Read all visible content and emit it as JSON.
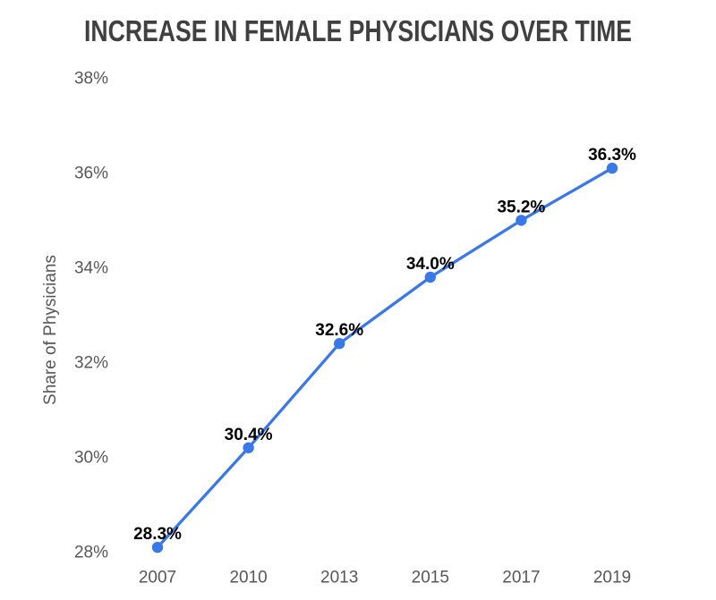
{
  "chart_data": {
    "type": "line",
    "title": "INCREASE IN FEMALE PHYSICIANS OVER TIME",
    "ylabel": "Share of Physicians",
    "categories": [
      "2007",
      "2010",
      "2013",
      "2015",
      "2017",
      "2019"
    ],
    "series": [
      {
        "name": "Share of Physicians",
        "values": [
          28.3,
          30.4,
          32.6,
          34.0,
          35.2,
          36.3
        ]
      }
    ],
    "point_labels": [
      "28.3%",
      "30.4%",
      "32.6%",
      "34.0%",
      "35.2%",
      "36.3%"
    ],
    "ytick_labels": [
      "38%",
      "36%",
      "34%",
      "32%",
      "30%",
      "28%"
    ],
    "ytick_values": [
      38,
      36,
      34,
      32,
      30,
      28
    ],
    "ylim": [
      28,
      38
    ],
    "grid": false,
    "legend": "none",
    "markers": true,
    "colors": {
      "line": "#3b78e7",
      "marker": "#3b78e7",
      "title_text": "#404040",
      "axis_text": "#575757",
      "data_label": "#000000",
      "background": "#ffffff"
    }
  }
}
